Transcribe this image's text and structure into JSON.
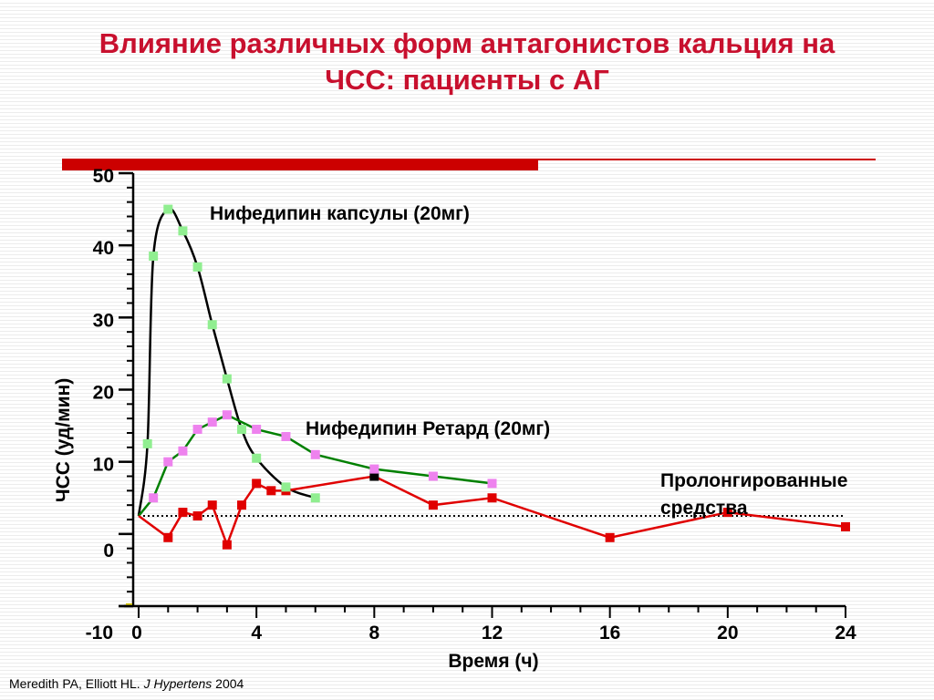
{
  "title": {
    "line1": "Влияние различных форм антагонистов кальция на",
    "line2": "ЧСС: пациенты с АГ"
  },
  "citation": {
    "authors": "Meredith PA,  Elliott HL. ",
    "journal": "J Hypertens",
    "year": " 2004"
  },
  "colors": {
    "title": "#c8102e",
    "accent_bar": "#cc0000",
    "capsule_curve": "#000000",
    "capsule_markers": "#90ee90",
    "retard_line": "#008000",
    "retard_markers": "#ee82ee",
    "prolonged": "#e00000"
  },
  "chart_data": {
    "type": "line",
    "xlabel": "Время (ч)",
    "ylabel": "ЧСС (уд/мин)",
    "x_ticks": [
      0,
      4,
      8,
      12,
      16,
      20,
      24
    ],
    "y_ticks": [
      50,
      40,
      30,
      20,
      10,
      0,
      -10
    ],
    "xlim": [
      0,
      24
    ],
    "ylim": [
      -10,
      50
    ],
    "baseline_dotted": 2.5,
    "annotations": [
      "Нифедипин капсулы (20мг)",
      "Нифедипин Ретард (20мг)",
      "Пролонгированные",
      "средства"
    ],
    "series": [
      {
        "name": "Нифедипин капсулы (20мг)",
        "line_color": "#000000",
        "marker_color": "#90ee90",
        "x": [
          0.3,
          0.5,
          1,
          1.5,
          2,
          2.5,
          3,
          3.5,
          4,
          5,
          6
        ],
        "y": [
          12.5,
          38.5,
          45,
          42,
          37,
          29,
          21.5,
          14.5,
          10.5,
          6.5,
          5
        ]
      },
      {
        "name": "Нифедипин Ретард (20мг)",
        "line_color": "#008000",
        "marker_color": "#ee82ee",
        "x": [
          0.5,
          1,
          1.5,
          2,
          2.5,
          3,
          4,
          5,
          6,
          8,
          10,
          12
        ],
        "y": [
          5,
          10,
          11.5,
          14.5,
          15.5,
          16.5,
          14.5,
          13.5,
          11,
          9,
          8,
          7
        ]
      },
      {
        "name": "Пролонгированные средства",
        "line_color": "#e00000",
        "marker_color": "#e00000",
        "x": [
          1,
          1.5,
          2,
          2.5,
          3,
          3.5,
          4,
          4.5,
          5,
          8,
          10,
          12,
          16,
          20,
          24
        ],
        "y": [
          -0.5,
          3,
          2.5,
          4,
          -1.5,
          4,
          7,
          6,
          6,
          8,
          4,
          5,
          -0.5,
          3,
          1
        ]
      }
    ]
  }
}
